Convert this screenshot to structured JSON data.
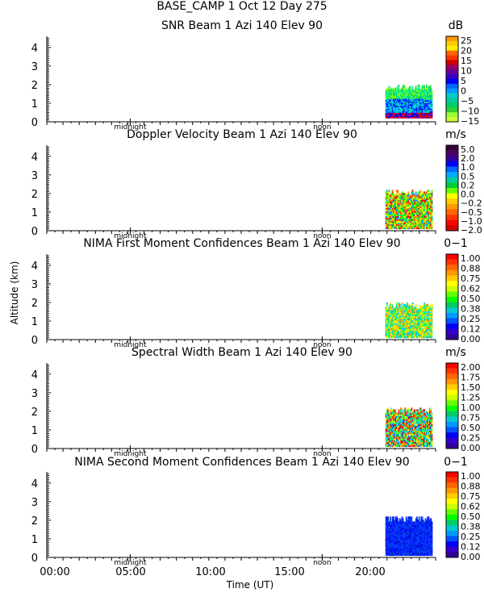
{
  "header": {
    "station_line": "BASE_CAMP    1 Oct 12 Day 275"
  },
  "axes": {
    "ylabel": "Altitude (km)",
    "xlabel": "Time (UT)",
    "xticks": [
      "00:00",
      "05:00",
      "10:00",
      "15:00",
      "20:00"
    ],
    "yticks": [
      "0",
      "1",
      "2",
      "3",
      "4"
    ],
    "markers": [
      "midnight",
      "noon"
    ]
  },
  "chart_data": [
    {
      "type": "heatmap",
      "title": "SNR Beam 1 Azi 140 Elev 90",
      "unit": "dB",
      "xlabel": "Time (UT)",
      "ylabel": "Altitude (km)",
      "xlim": [
        0,
        24
      ],
      "ylim": [
        0,
        4.6
      ],
      "data_time_range": [
        20.9,
        23.8
      ],
      "data_alt_range": [
        0.2,
        2.0
      ],
      "colorbar": [
        "25",
        "20",
        "15",
        "10",
        "5",
        "0",
        "−5",
        "−10",
        "−15"
      ],
      "colors": [
        "#ff0000",
        "#ff4d00",
        "#ff9900",
        "#ffcc00",
        "#ffff00",
        "#ccff33",
        "#99ff33",
        "#33cc33",
        "#00cc66",
        "#00cc99",
        "#00cccc",
        "#0099ff",
        "#0066ff",
        "#0000ff",
        "#3300cc",
        "#330099",
        "#660099",
        "#330033"
      ]
    },
    {
      "type": "heatmap",
      "title": "Doppler Velocity Beam 1 Azi 140 Elev 90",
      "unit": "m/s",
      "xlabel": "Time (UT)",
      "ylabel": "Altitude (km)",
      "xlim": [
        0,
        24
      ],
      "ylim": [
        0,
        4.6
      ],
      "data_time_range": [
        20.9,
        23.8
      ],
      "data_alt_range": [
        0.1,
        2.2
      ],
      "colorbar": [
        "5.0",
        "2.0",
        "1.0",
        "0.5",
        "0.2",
        "0.0",
        "−0.2",
        "−0.5",
        "−1.0",
        "−2.0"
      ]
    },
    {
      "type": "heatmap",
      "title": "NIMA First Moment Confidences Beam 1 Azi 140 Elev 90",
      "unit": "0−1",
      "xlabel": "Time (UT)",
      "ylabel": "Altitude (km)",
      "xlim": [
        0,
        24
      ],
      "ylim": [
        0,
        4.6
      ],
      "data_time_range": [
        20.9,
        23.8
      ],
      "data_alt_range": [
        0.1,
        2.0
      ],
      "colorbar": [
        "1.00",
        "0.88",
        "0.75",
        "0.62",
        "0.50",
        "0.38",
        "0.25",
        "0.12",
        "0.00"
      ]
    },
    {
      "type": "heatmap",
      "title": "Spectral Width Beam 1 Azi 140 Elev 90",
      "unit": "m/s",
      "xlabel": "Time (UT)",
      "ylabel": "Altitude (km)",
      "xlim": [
        0,
        24
      ],
      "ylim": [
        0,
        4.6
      ],
      "data_time_range": [
        20.9,
        23.8
      ],
      "data_alt_range": [
        0.1,
        2.2
      ],
      "colorbar": [
        "2.00",
        "1.75",
        "1.50",
        "1.25",
        "1.00",
        "0.75",
        "0.50",
        "0.25",
        "0.00"
      ]
    },
    {
      "type": "heatmap",
      "title": "NIMA Second Moment Confidences Beam 1 Azi 140 Elev 90",
      "unit": "0−1",
      "xlabel": "Time (UT)",
      "ylabel": "Altitude (km)",
      "xlim": [
        0,
        24
      ],
      "ylim": [
        0,
        4.6
      ],
      "data_time_range": [
        20.9,
        23.8
      ],
      "data_alt_range": [
        0.1,
        2.2
      ],
      "colorbar": [
        "1.00",
        "0.88",
        "0.75",
        "0.62",
        "0.50",
        "0.38",
        "0.25",
        "0.12",
        "0.00"
      ]
    }
  ]
}
